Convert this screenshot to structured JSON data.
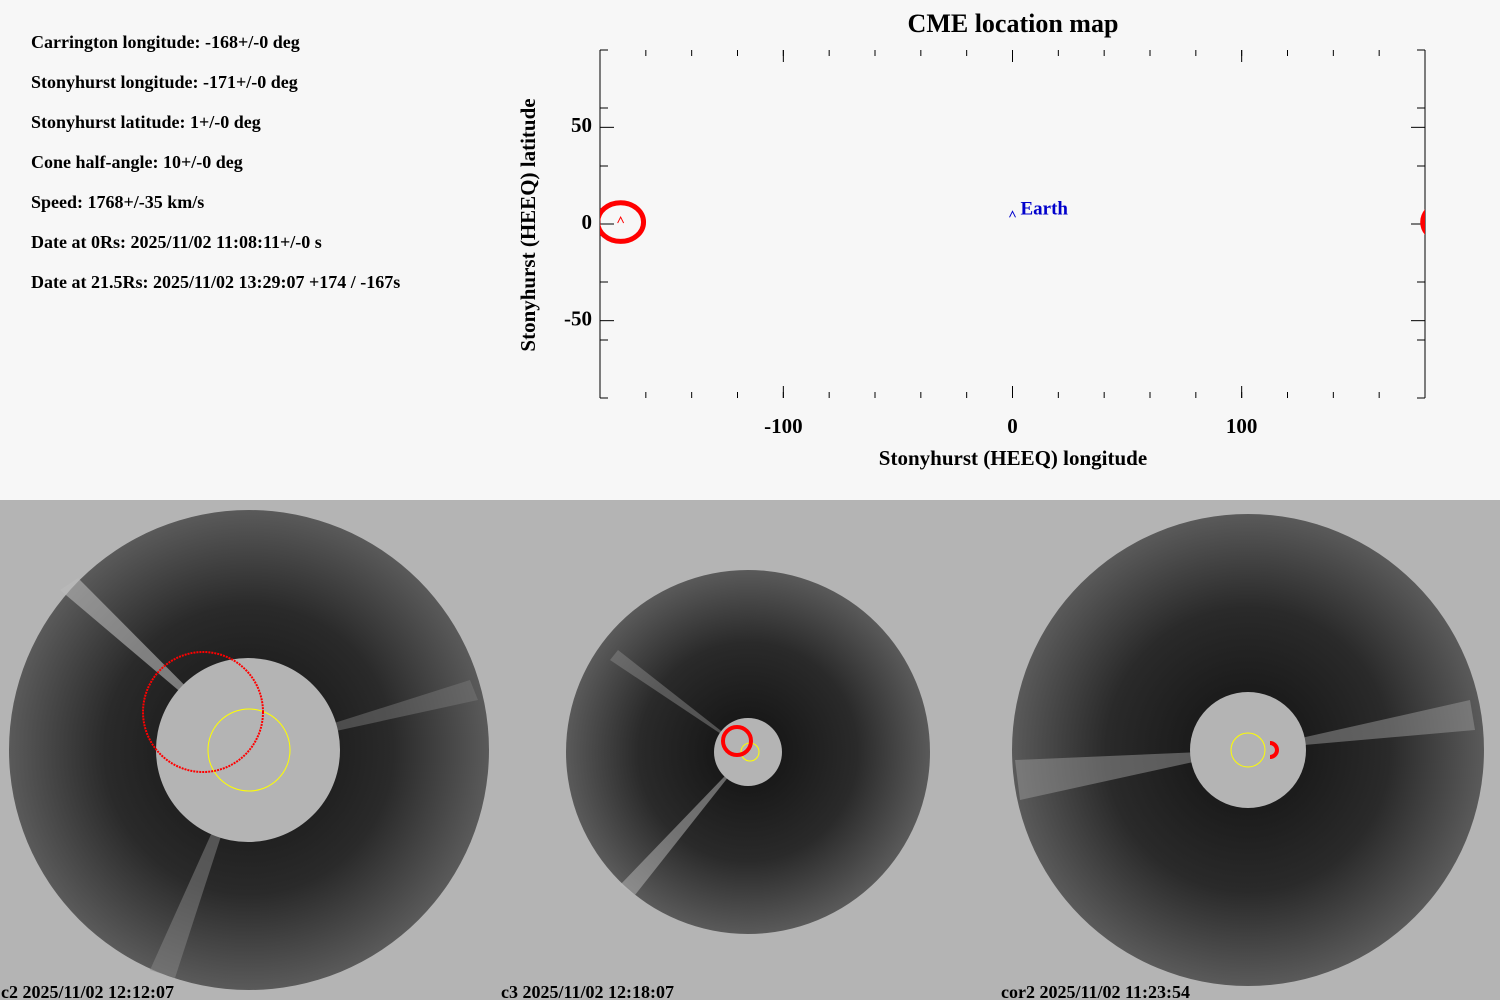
{
  "info": [
    "Carrington longitude: -168+/-0 deg",
    "Stonyhurst longitude: -171+/-0 deg",
    "Stonyhurst latitude: 1+/-0 deg",
    "Cone half-angle: 10+/-0 deg",
    "Speed: 1768+/-35 km/s",
    "Date at 0Rs: 2025/11/02 11:08:11+/-0 s",
    "Date at 21.5Rs: 2025/11/02 13:29:07 +174 / -167s"
  ],
  "chart_data": {
    "type": "scatter",
    "title": "CME location map",
    "x_label": "Stonyhurst (HEEQ) longitude",
    "y_label": "Stonyhurst (HEEQ) latitude",
    "xlim": [
      -180,
      180
    ],
    "ylim": [
      -90,
      90
    ],
    "xticks": [
      -100,
      0,
      100
    ],
    "yticks": [
      -50,
      0,
      50
    ],
    "xminorticks": [
      -180,
      -160,
      -140,
      -120,
      -100,
      -80,
      -60,
      -40,
      -20,
      0,
      20,
      40,
      60,
      80,
      100,
      120,
      140,
      160,
      180
    ],
    "yminorticks": [
      -90,
      -60,
      -30,
      0,
      30,
      60,
      90
    ],
    "markers": [
      {
        "x": -171,
        "y": 1,
        "radius": 10,
        "color": "#ff0000"
      },
      {
        "label": "Earth",
        "x": 0,
        "y": 5,
        "color": "#0000cc"
      }
    ]
  },
  "images": [
    {
      "label": "c2 2025/11/02 12:12:07"
    },
    {
      "label": "c3 2025/11/02 12:18:07"
    },
    {
      "label": "cor2 2025/11/02 11:23:54"
    }
  ]
}
